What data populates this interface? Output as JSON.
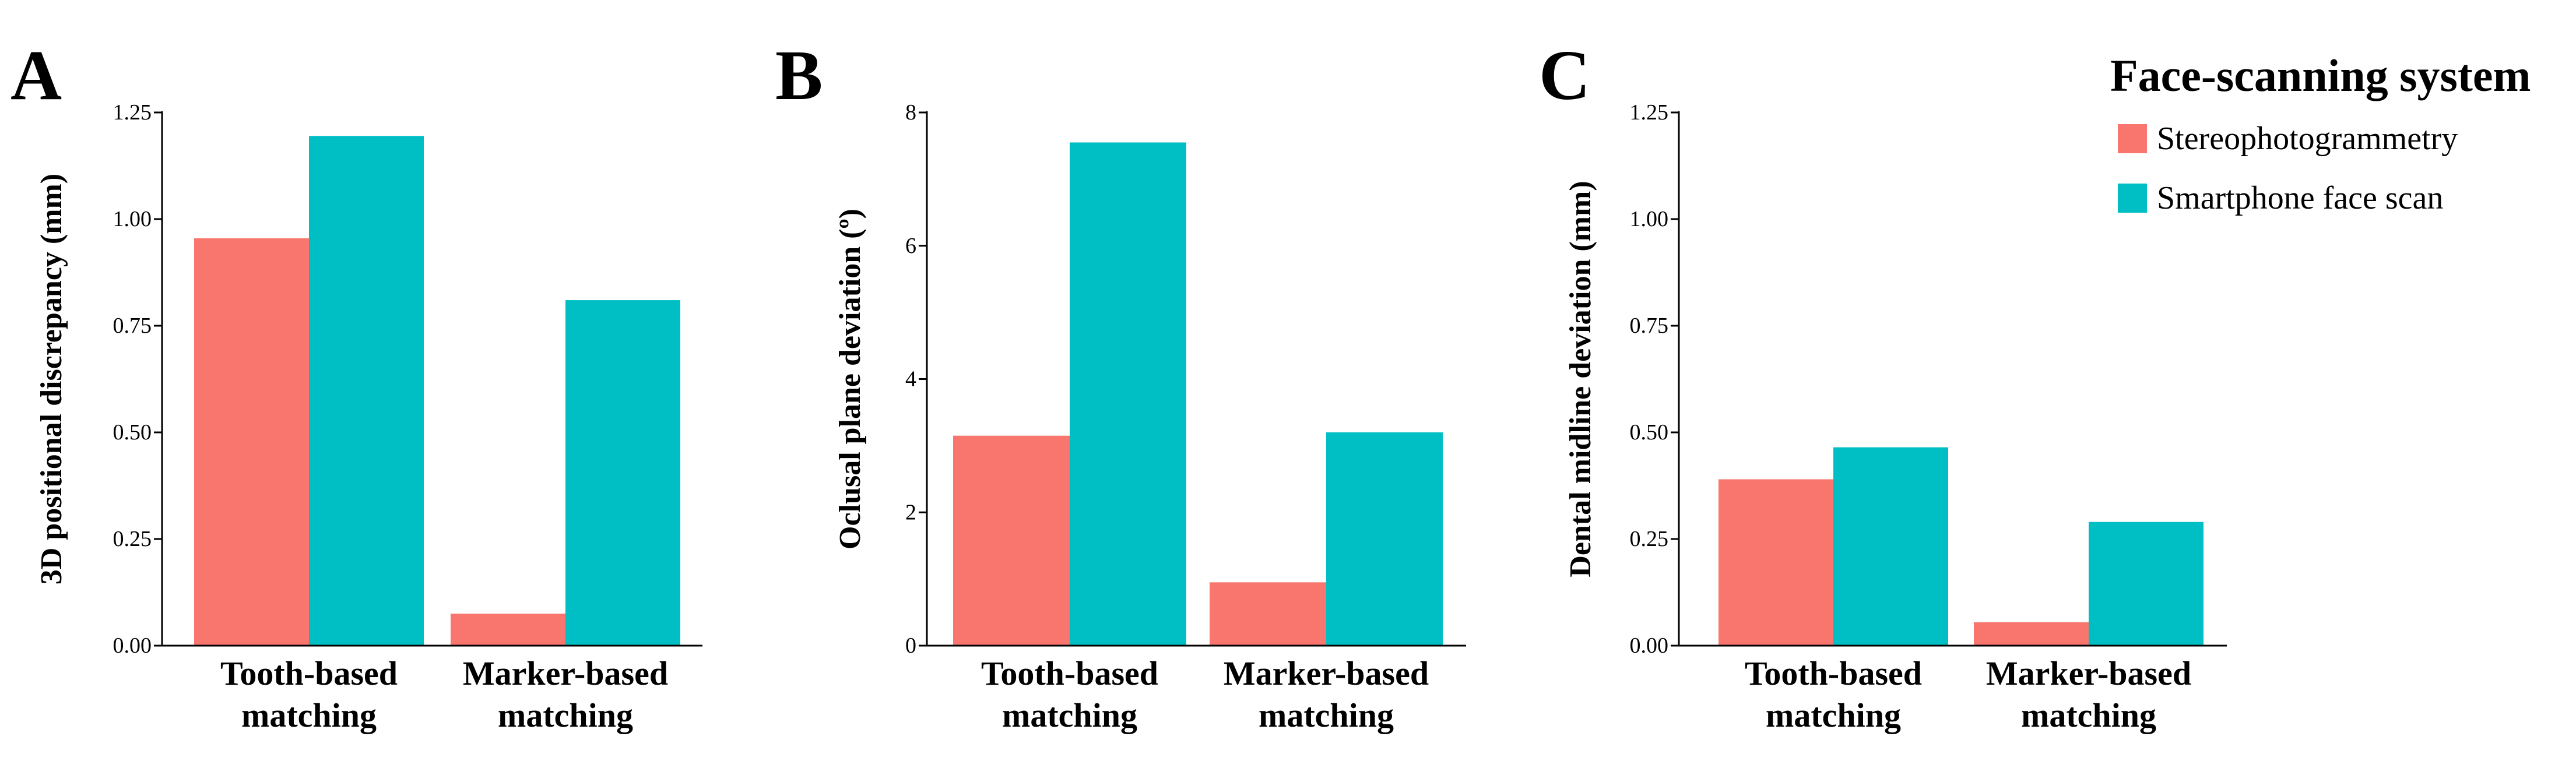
{
  "legend": {
    "title": "Face-scanning system",
    "position": "top-right"
  },
  "colors": {
    "stereophotogrammetry": "#F8766D",
    "smartphone": "#00BFC4",
    "axis": "#000000"
  },
  "chart_data": [
    {
      "type": "bar",
      "panel_label": "A",
      "title": "",
      "xlabel": "",
      "ylabel": "3D positional discrepancy (mm)",
      "categories": [
        "Tooth-based matching",
        "Marker-based matching"
      ],
      "category_lines": [
        [
          "Tooth-based",
          "matching"
        ],
        [
          "Marker-based",
          "matching"
        ]
      ],
      "series": [
        {
          "name": "Stereophotogrammetry",
          "values": [
            0.955,
            0.075
          ]
        },
        {
          "name": "Smartphone face scan",
          "values": [
            1.195,
            0.81
          ]
        }
      ],
      "ylim": [
        0,
        1.25
      ],
      "yticks": [
        0,
        0.25,
        0.5,
        0.75,
        1.0,
        1.25
      ],
      "ytick_labels": [
        "0.00",
        "0.25",
        "0.50",
        "0.75",
        "1.00",
        "1.25"
      ],
      "grid": false
    },
    {
      "type": "bar",
      "panel_label": "B",
      "title": "",
      "xlabel": "",
      "ylabel": "Oclusal plane deviation (º)",
      "categories": [
        "Tooth-based matching",
        "Marker-based matching"
      ],
      "category_lines": [
        [
          "Tooth-based",
          "matching"
        ],
        [
          "Marker-based",
          "matching"
        ]
      ],
      "series": [
        {
          "name": "Stereophotogrammetry",
          "values": [
            3.15,
            0.95
          ]
        },
        {
          "name": "Smartphone face scan",
          "values": [
            7.55,
            3.2
          ]
        }
      ],
      "ylim": [
        0,
        8
      ],
      "yticks": [
        0,
        2,
        4,
        6,
        8
      ],
      "ytick_labels": [
        "0",
        "2",
        "4",
        "6",
        "8"
      ],
      "grid": false
    },
    {
      "type": "bar",
      "panel_label": "C",
      "title": "",
      "xlabel": "",
      "ylabel": "Dental midline deviation (mm)",
      "categories": [
        "Tooth-based matching",
        "Marker-based matching"
      ],
      "category_lines": [
        [
          "Tooth-based",
          "matching"
        ],
        [
          "Marker-based",
          "matching"
        ]
      ],
      "series": [
        {
          "name": "Stereophotogrammetry",
          "values": [
            0.39,
            0.055
          ]
        },
        {
          "name": "Smartphone face scan",
          "values": [
            0.465,
            0.29
          ]
        }
      ],
      "ylim": [
        0,
        1.25
      ],
      "yticks": [
        0,
        0.25,
        0.5,
        0.75,
        1.0,
        1.25
      ],
      "ytick_labels": [
        "0.00",
        "0.25",
        "0.50",
        "0.75",
        "1.00",
        "1.25"
      ],
      "grid": false
    }
  ]
}
